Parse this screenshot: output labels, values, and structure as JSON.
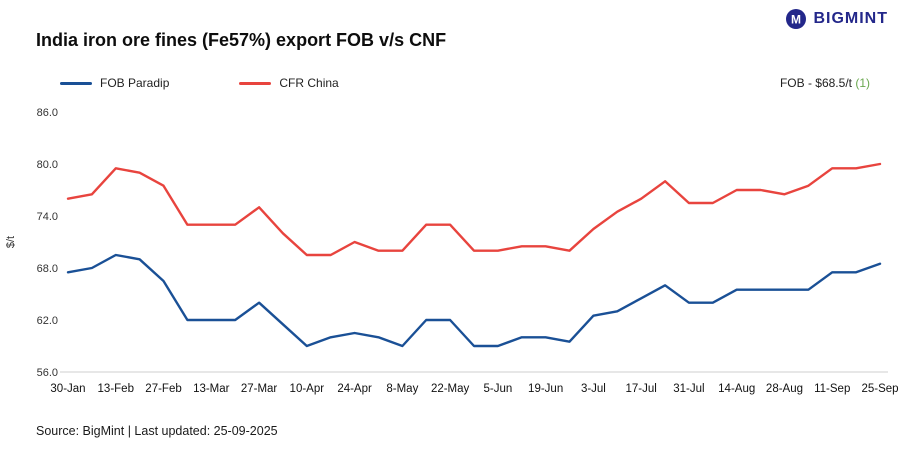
{
  "header": {
    "title": "India iron ore fines (Fe57%) export FOB v/s CNF",
    "brand": "BIGMINT",
    "brand_color": "#23278a"
  },
  "legend": {
    "items": [
      {
        "label": "FOB Paradip",
        "color": "#1a5096"
      },
      {
        "label": "CFR China",
        "color": "#e8443e"
      }
    ]
  },
  "price_note": {
    "text": "FOB - $68.5/t ",
    "change": "(1)",
    "change_color": "#6aa84f"
  },
  "footer": {
    "source_line": "Source: BigMint | Last updated: 25-09-2025"
  },
  "chart_data": {
    "type": "line",
    "title": "India iron ore fines (Fe57%) export FOB v/s CNF",
    "xlabel": "",
    "ylabel": "$/t",
    "ylim": [
      56,
      86
    ],
    "yticks": [
      86.0,
      80.0,
      74.0,
      68.0,
      62.0,
      56.0
    ],
    "grid": false,
    "legend_position": "top-left",
    "points_per_tick": 2,
    "x_tick_labels": [
      "30-Jan",
      "13-Feb",
      "27-Feb",
      "13-Mar",
      "27-Mar",
      "10-Apr",
      "24-Apr",
      "8-May",
      "22-May",
      "5-Jun",
      "19-Jun",
      "3-Jul",
      "17-Jul",
      "31-Jul",
      "14-Aug",
      "28-Aug",
      "11-Sep",
      "25-Sep"
    ],
    "series": [
      {
        "name": "FOB Paradip",
        "color": "#1a5096",
        "values": [
          67.5,
          68,
          69.5,
          69,
          66.5,
          62,
          62,
          62,
          64,
          61.5,
          59,
          60,
          60.5,
          60,
          59,
          62,
          62,
          59,
          59,
          60,
          60,
          59.5,
          62.5,
          63,
          64.5,
          66,
          64,
          64,
          65.5,
          65.5,
          65.5,
          65.5,
          67.5,
          67.5,
          68.5
        ]
      },
      {
        "name": "CFR China",
        "color": "#e8443e",
        "values": [
          76,
          76.5,
          79.5,
          79,
          77.5,
          73,
          73,
          73,
          75,
          72,
          69.5,
          69.5,
          71,
          70,
          70,
          73,
          73,
          70,
          70,
          70.5,
          70.5,
          70,
          72.5,
          74.5,
          76,
          78,
          75.5,
          75.5,
          77,
          77,
          76.5,
          77.5,
          79.5,
          79.5,
          80
        ]
      }
    ]
  }
}
